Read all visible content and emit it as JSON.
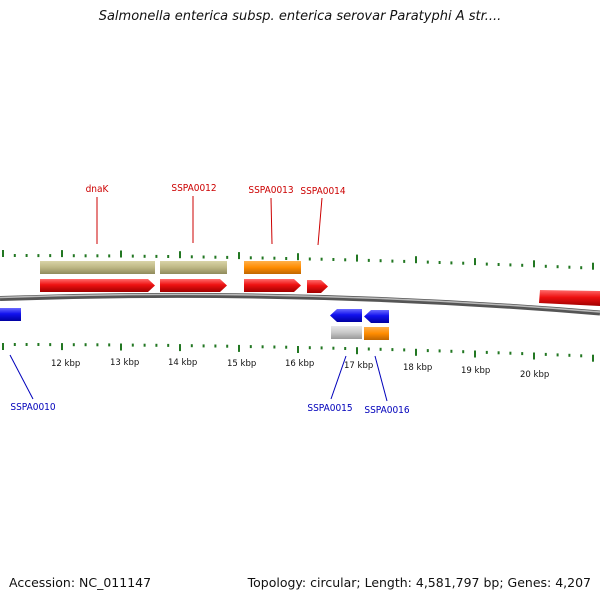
{
  "title": "Salmonella enterica subsp. enterica serovar Paratyphi A str....",
  "footer": {
    "accession": "Accession: NC_011147",
    "summary": "Topology: circular; Length: 4,581,797 bp; Genes: 4,207"
  },
  "colors": {
    "forward_label": "#cc0000",
    "reverse_label": "#0000bb",
    "cds": "#ee1111",
    "reverse_cds": "#1111ee",
    "khaki_feature": "#bdb784",
    "orange_feature": "#ff8c00",
    "gray_feature": "#c8c8c8",
    "ticks": "#227722",
    "backbone": "#777777"
  },
  "scale": {
    "unit": "kbp",
    "ticks": [
      "12 kbp",
      "13 kbp",
      "14 kbp",
      "15 kbp",
      "16 kbp",
      "17 kbp",
      "18 kbp",
      "19 kbp",
      "20 kbp"
    ]
  },
  "genes_forward": [
    {
      "name": "dnaK"
    },
    {
      "name": "SSPA0012"
    },
    {
      "name": "SSPA0013"
    },
    {
      "name": "SSPA0014"
    }
  ],
  "genes_reverse": [
    {
      "name": "SSPA0010"
    },
    {
      "name": "SSPA0015"
    },
    {
      "name": "SSPA0016"
    }
  ]
}
